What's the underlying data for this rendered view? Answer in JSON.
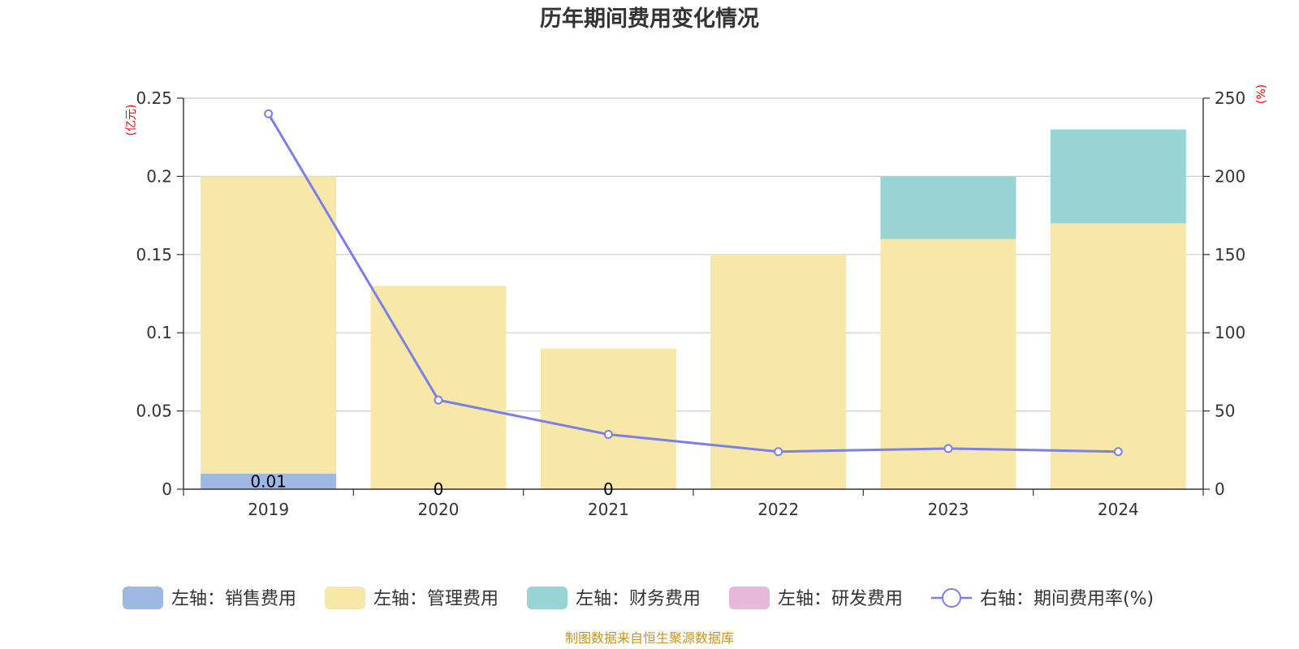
{
  "chart_data": {
    "type": "bar",
    "title": "历年期间费用变化情况",
    "categories": [
      "2019",
      "2020",
      "2021",
      "2022",
      "2023",
      "2024"
    ],
    "left_axis": {
      "unit": "(亿元)",
      "ylim": [
        0,
        0.25
      ],
      "ticks": [
        "0",
        "0.05",
        "0.1",
        "0.15",
        "0.2",
        "0.25"
      ]
    },
    "right_axis": {
      "unit": "(%)",
      "ylim": [
        0,
        250
      ],
      "ticks": [
        "0",
        "50",
        "100",
        "150",
        "200",
        "250"
      ]
    },
    "stacked": true,
    "series": [
      {
        "name": "左轴：销售费用",
        "axis": "left",
        "type": "bar",
        "color": "#9db8e3",
        "values": [
          0.01,
          0,
          0,
          0,
          0,
          0
        ],
        "labels": [
          "0.01",
          "0",
          "0",
          "",
          "",
          ""
        ]
      },
      {
        "name": "左轴：管理费用",
        "axis": "left",
        "type": "bar",
        "color": "#f7e7a8",
        "values": [
          0.19,
          0.13,
          0.09,
          0.15,
          0.16,
          0.17
        ]
      },
      {
        "name": "左轴：财务费用",
        "axis": "left",
        "type": "bar",
        "color": "#98d4d4",
        "values": [
          0,
          0,
          0,
          0,
          0.04,
          0.06
        ]
      },
      {
        "name": "左轴：研发费用",
        "axis": "left",
        "type": "bar",
        "color": "#e8b8d8",
        "values": [
          0,
          0,
          0,
          0,
          0,
          0
        ]
      },
      {
        "name": "右轴：期间费用率(%)",
        "axis": "right",
        "type": "line",
        "color": "#7b7fe8",
        "values": [
          240,
          57,
          35,
          24,
          26,
          24
        ]
      }
    ],
    "grid": true,
    "legend_position": "bottom",
    "source": "制图数据来自恒生聚源数据库"
  }
}
